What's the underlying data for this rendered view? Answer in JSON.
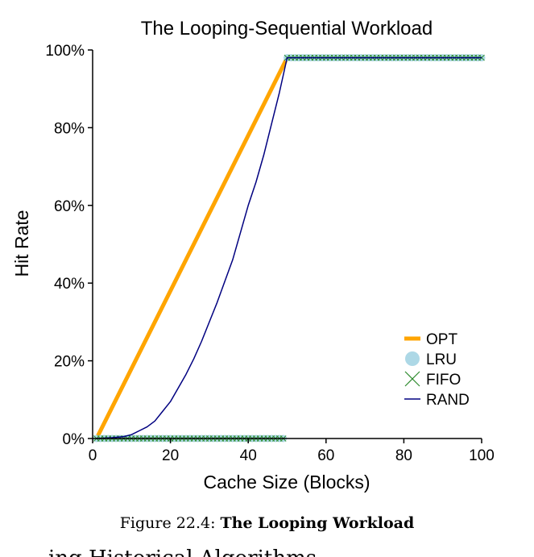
{
  "chart_data": {
    "type": "line",
    "title": "The Looping-Sequential Workload",
    "xlabel": "Cache Size (Blocks)",
    "ylabel": "Hit Rate",
    "xlim": [
      0,
      100
    ],
    "ylim": [
      0,
      100
    ],
    "xticks": [
      0,
      20,
      40,
      60,
      80,
      100
    ],
    "xtick_labels": [
      "0",
      "20",
      "40",
      "60",
      "80",
      "100"
    ],
    "yticks": [
      0,
      20,
      40,
      60,
      80,
      100
    ],
    "ytick_labels": [
      "0%",
      "20%",
      "40%",
      "60%",
      "80%",
      "100%"
    ],
    "legend_position": "bottom-right",
    "series": [
      {
        "name": "OPT",
        "style": "thick-line",
        "color": "#FFA500",
        "x": [
          1,
          50,
          100
        ],
        "y": [
          0,
          98,
          98
        ]
      },
      {
        "name": "LRU",
        "style": "circle-markers",
        "color": "#ADD8E6",
        "x": [
          1,
          2,
          3,
          4,
          5,
          6,
          7,
          8,
          9,
          10,
          11,
          12,
          13,
          14,
          15,
          16,
          17,
          18,
          19,
          20,
          21,
          22,
          23,
          24,
          25,
          26,
          27,
          28,
          29,
          30,
          31,
          32,
          33,
          34,
          35,
          36,
          37,
          38,
          39,
          40,
          41,
          42,
          43,
          44,
          45,
          46,
          47,
          48,
          49,
          50,
          51,
          52,
          53,
          54,
          55,
          56,
          57,
          58,
          59,
          60,
          61,
          62,
          63,
          64,
          65,
          66,
          67,
          68,
          69,
          70,
          71,
          72,
          73,
          74,
          75,
          76,
          77,
          78,
          79,
          80,
          81,
          82,
          83,
          84,
          85,
          86,
          87,
          88,
          89,
          90,
          91,
          92,
          93,
          94,
          95,
          96,
          97,
          98,
          99,
          100
        ],
        "y": [
          0,
          0,
          0,
          0,
          0,
          0,
          0,
          0,
          0,
          0,
          0,
          0,
          0,
          0,
          0,
          0,
          0,
          0,
          0,
          0,
          0,
          0,
          0,
          0,
          0,
          0,
          0,
          0,
          0,
          0,
          0,
          0,
          0,
          0,
          0,
          0,
          0,
          0,
          0,
          0,
          0,
          0,
          0,
          0,
          0,
          0,
          0,
          0,
          0,
          98,
          98,
          98,
          98,
          98,
          98,
          98,
          98,
          98,
          98,
          98,
          98,
          98,
          98,
          98,
          98,
          98,
          98,
          98,
          98,
          98,
          98,
          98,
          98,
          98,
          98,
          98,
          98,
          98,
          98,
          98,
          98,
          98,
          98,
          98,
          98,
          98,
          98,
          98,
          98,
          98,
          98,
          98,
          98,
          98,
          98,
          98,
          98,
          98,
          98,
          98
        ]
      },
      {
        "name": "FIFO",
        "style": "x-markers",
        "color": "#2E8B2E",
        "x": [
          1,
          2,
          3,
          4,
          5,
          6,
          7,
          8,
          9,
          10,
          11,
          12,
          13,
          14,
          15,
          16,
          17,
          18,
          19,
          20,
          21,
          22,
          23,
          24,
          25,
          26,
          27,
          28,
          29,
          30,
          31,
          32,
          33,
          34,
          35,
          36,
          37,
          38,
          39,
          40,
          41,
          42,
          43,
          44,
          45,
          46,
          47,
          48,
          49,
          50,
          51,
          52,
          53,
          54,
          55,
          56,
          57,
          58,
          59,
          60,
          61,
          62,
          63,
          64,
          65,
          66,
          67,
          68,
          69,
          70,
          71,
          72,
          73,
          74,
          75,
          76,
          77,
          78,
          79,
          80,
          81,
          82,
          83,
          84,
          85,
          86,
          87,
          88,
          89,
          90,
          91,
          92,
          93,
          94,
          95,
          96,
          97,
          98,
          99,
          100
        ],
        "y": [
          0,
          0,
          0,
          0,
          0,
          0,
          0,
          0,
          0,
          0,
          0,
          0,
          0,
          0,
          0,
          0,
          0,
          0,
          0,
          0,
          0,
          0,
          0,
          0,
          0,
          0,
          0,
          0,
          0,
          0,
          0,
          0,
          0,
          0,
          0,
          0,
          0,
          0,
          0,
          0,
          0,
          0,
          0,
          0,
          0,
          0,
          0,
          0,
          0,
          98,
          98,
          98,
          98,
          98,
          98,
          98,
          98,
          98,
          98,
          98,
          98,
          98,
          98,
          98,
          98,
          98,
          98,
          98,
          98,
          98,
          98,
          98,
          98,
          98,
          98,
          98,
          98,
          98,
          98,
          98,
          98,
          98,
          98,
          98,
          98,
          98,
          98,
          98,
          98,
          98,
          98,
          98,
          98,
          98,
          98,
          98,
          98,
          98,
          98,
          98
        ]
      },
      {
        "name": "RAND",
        "style": "thin-line",
        "color": "#000080",
        "x": [
          1,
          5,
          8,
          10,
          12,
          14,
          16,
          18,
          20,
          22,
          24,
          26,
          28,
          30,
          32,
          34,
          36,
          38,
          40,
          42,
          44,
          46,
          48,
          50,
          52,
          60,
          70,
          80,
          90,
          100
        ],
        "y": [
          0,
          0.2,
          0.5,
          1,
          2,
          3,
          4.5,
          7,
          9.5,
          13,
          16.5,
          20.5,
          25,
          30,
          35,
          40.5,
          46,
          53,
          60,
          66,
          73,
          81,
          89,
          98,
          98,
          98,
          98,
          98,
          98,
          98
        ]
      }
    ]
  },
  "caption": {
    "prefix": "Figure 22.4: ",
    "bold": "The Looping Workload"
  },
  "cutoff_text": "ing Historical Algorithms"
}
